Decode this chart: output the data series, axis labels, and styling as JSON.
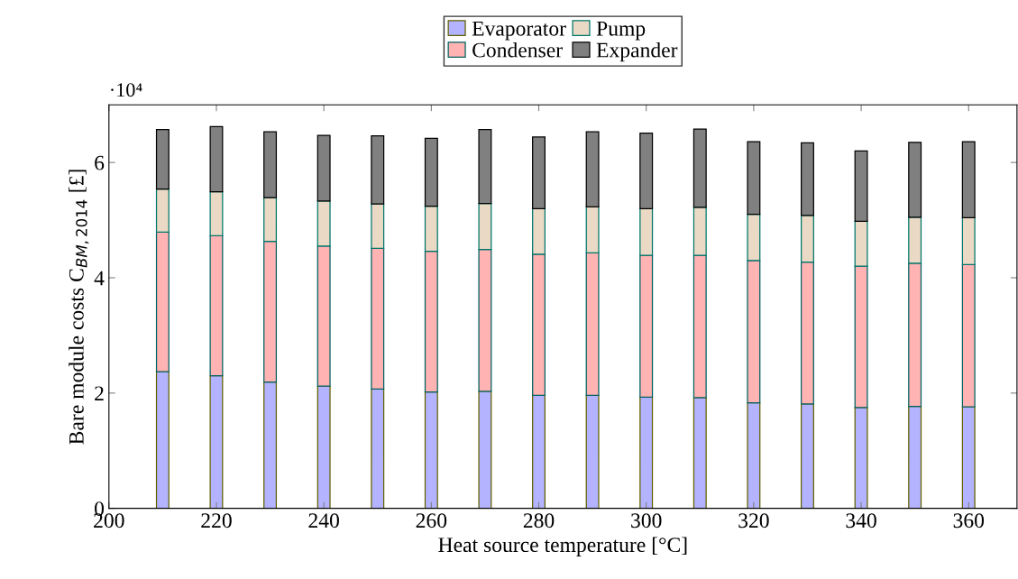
{
  "chart_data": {
    "type": "bar",
    "stacked": true,
    "xlabel": "Heat source temperature [°C]",
    "ylabel": "Bare module costs C$_{BM,2014}$ [£]",
    "annotations": [
      "·10⁴"
    ],
    "x": [
      210,
      220,
      230,
      240,
      250,
      260,
      270,
      280,
      290,
      300,
      310,
      320,
      330,
      340,
      350,
      360
    ],
    "xlim": [
      200,
      369
    ],
    "xticks": [
      200,
      220,
      240,
      260,
      280,
      300,
      320,
      340,
      360
    ],
    "ylim": [
      0,
      7
    ],
    "yticks": [
      0,
      2,
      4,
      6
    ],
    "legend": "top",
    "grid": false,
    "series": [
      {
        "name": "Evaporator",
        "color": "#b3b3ff",
        "values": [
          2.37,
          2.3,
          2.19,
          2.12,
          2.07,
          2.02,
          2.03,
          1.96,
          1.96,
          1.93,
          1.92,
          1.83,
          1.81,
          1.75,
          1.77,
          1.76
        ]
      },
      {
        "name": "Condenser",
        "color": "#ffb3b3",
        "values": [
          2.42,
          2.43,
          2.44,
          2.43,
          2.44,
          2.44,
          2.46,
          2.45,
          2.47,
          2.46,
          2.47,
          2.47,
          2.46,
          2.45,
          2.48,
          2.47
        ]
      },
      {
        "name": "Pump",
        "color": "#ead9c4",
        "values": [
          0.75,
          0.76,
          0.76,
          0.78,
          0.77,
          0.78,
          0.8,
          0.79,
          0.8,
          0.81,
          0.83,
          0.8,
          0.81,
          0.78,
          0.8,
          0.81
        ]
      },
      {
        "name": "Expander",
        "color": "#808080",
        "values": [
          1.03,
          1.13,
          1.14,
          1.14,
          1.18,
          1.18,
          1.28,
          1.24,
          1.3,
          1.31,
          1.36,
          1.26,
          1.26,
          1.22,
          1.3,
          1.32
        ]
      }
    ]
  }
}
